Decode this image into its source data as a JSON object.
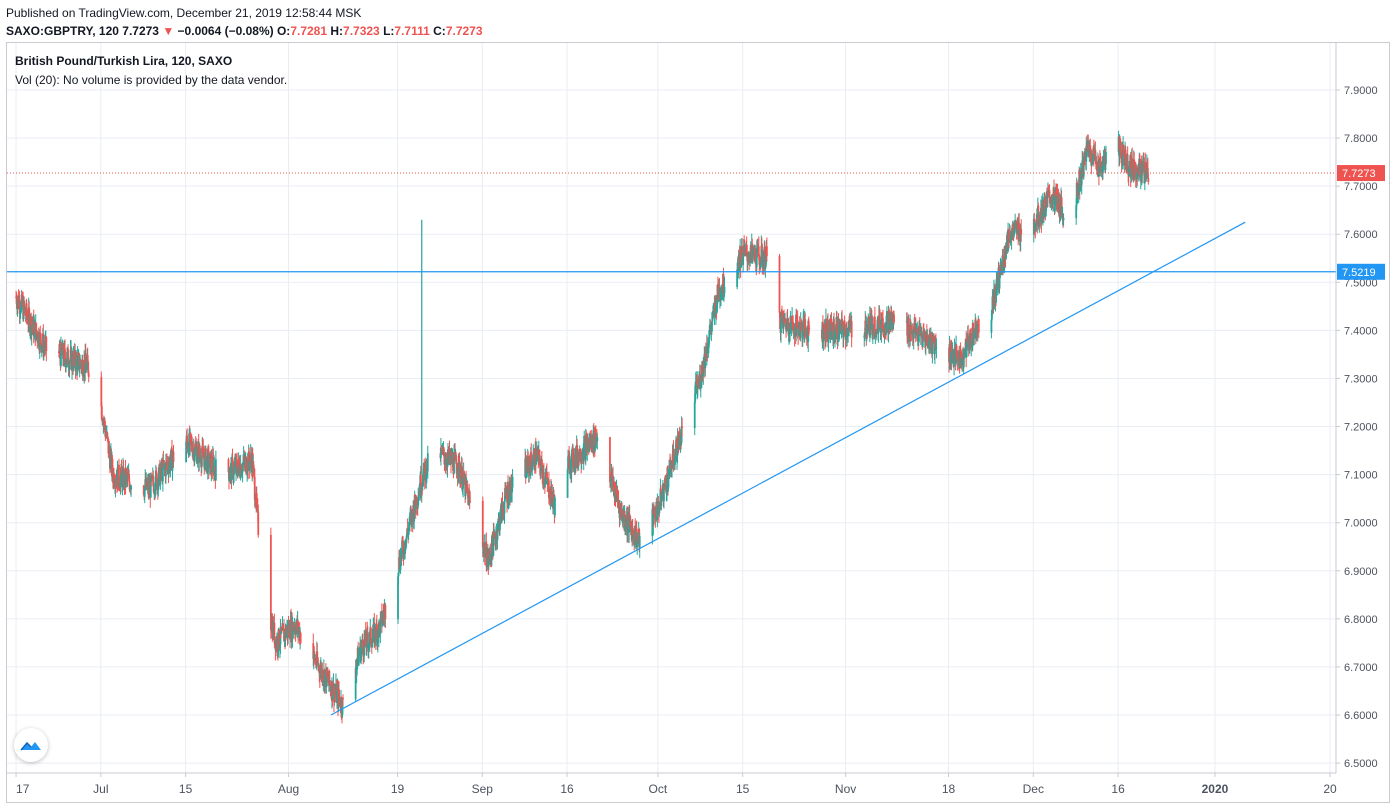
{
  "header": {
    "published": "Published on TradingView.com, December 21, 2019 12:58:44 MSK",
    "symbol": "SAXO:GBPTRY, 120",
    "last": "7.7273",
    "arrow": "▼",
    "change": "−0.0064 (−0.08%)",
    "o_label": "O:",
    "o_value": "7.7281",
    "h_label": "H:",
    "h_value": "7.7323",
    "l_label": "L:",
    "l_value": "7.7111",
    "c_label": "C:",
    "c_value": "7.7273"
  },
  "legend": {
    "title": "British Pound/Turkish Lira, 120, SAXO",
    "volume_note": "Vol (20): No volume is provided by the data vendor."
  },
  "chart_data": {
    "type": "line",
    "title": "British Pound/Turkish Lira, 120, SAXO",
    "xlabel": "",
    "ylabel": "",
    "ylim": [
      6.475,
      7.96
    ],
    "grid": true,
    "x_ticks": [
      "17",
      "Jul",
      "15",
      "Aug",
      "19",
      "Sep",
      "16",
      "Oct",
      "15",
      "Nov",
      "18",
      "Dec",
      "16",
      "2020",
      "20"
    ],
    "y_ticks": [
      "6.5000",
      "6.6000",
      "6.7000",
      "6.8000",
      "6.9000",
      "7.0000",
      "7.1000",
      "7.2000",
      "7.3000",
      "7.4000",
      "7.5000",
      "7.6000",
      "7.7000",
      "7.8000",
      "7.9000"
    ],
    "y_tick_values": [
      6.5,
      6.6,
      6.7,
      6.8,
      6.9,
      7.0,
      7.1,
      7.2,
      7.3,
      7.4,
      7.5,
      7.6,
      7.7,
      7.8,
      7.9
    ],
    "series": [
      {
        "name": "",
        "candle_anchor_dates": [
          "2019-06-17",
          "2019-06-22",
          "2019-06-30",
          "2019-07-03",
          "2019-07-09",
          "2019-07-15",
          "2019-07-21",
          "2019-07-26",
          "2019-07-28",
          "2019-07-30",
          "2019-08-02",
          "2019-08-06",
          "2019-08-10",
          "2019-08-13",
          "2019-08-16",
          "2019-08-20",
          "2019-08-23",
          "2019-08-25",
          "2019-08-29",
          "2019-09-03",
          "2019-09-06",
          "2019-09-11",
          "2019-09-15",
          "2019-09-16",
          "2019-09-21",
          "2019-09-25",
          "2019-09-28",
          "2019-10-01",
          "2019-10-04",
          "2019-10-08",
          "2019-10-11",
          "2019-10-15",
          "2019-10-19",
          "2019-10-21",
          "2019-10-26",
          "2019-11-01",
          "2019-11-09",
          "2019-11-16",
          "2019-11-20",
          "2019-11-23",
          "2019-11-25",
          "2019-11-28",
          "2019-12-02",
          "2019-12-05",
          "2019-12-08",
          "2019-12-11",
          "2019-12-13",
          "2019-12-16",
          "2019-12-18",
          "2019-12-21"
        ],
        "candle_anchor_values": [
          7.47,
          7.36,
          7.32,
          7.1,
          7.07,
          7.17,
          7.1,
          7.13,
          6.85,
          6.75,
          6.79,
          6.7,
          6.62,
          6.74,
          6.78,
          6.95,
          7.09,
          7.15,
          7.12,
          6.92,
          7.06,
          7.14,
          7.0,
          7.12,
          7.18,
          7.02,
          6.96,
          7.03,
          7.15,
          7.3,
          7.48,
          7.56,
          7.55,
          7.42,
          7.4,
          7.4,
          7.42,
          7.37,
          7.34,
          7.42,
          7.44,
          7.6,
          7.62,
          7.68,
          7.63,
          7.78,
          7.74,
          7.78,
          7.74,
          7.727
        ]
      }
    ],
    "spike": {
      "date": "2019-08-23",
      "high": 7.63,
      "low": 7.1
    },
    "trendline": {
      "start": {
        "date": "2019-08-08",
        "value": 6.6
      },
      "end": {
        "date": "2020-01-06",
        "value": 7.625
      }
    },
    "horizontal_line": {
      "value": 7.5219,
      "label": "7.5219",
      "color": "#2196f3"
    },
    "last_price": {
      "value": 7.7273,
      "label": "7.7273",
      "color": "#ef5350"
    },
    "x_start": "2019-06-16",
    "x_end": "2020-01-20"
  },
  "colors": {
    "up": "#26a69a",
    "down": "#ef5350",
    "grid": "#e9edf4",
    "trend": "#2196f3",
    "axis_text": "#4c525e"
  }
}
